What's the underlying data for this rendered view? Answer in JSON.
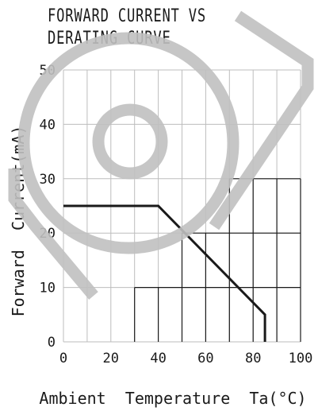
{
  "title_lines": [
    "FORWARD CURRENT VS",
    "DERATING CURVE"
  ],
  "chart_data": {
    "type": "line",
    "title": "FORWARD CURRENT VS DERATING CURVE",
    "xlabel": "Ambient  Temperature  Ta(°C)",
    "ylabel": "Forward  Current(mA)",
    "xlim": [
      0,
      100
    ],
    "ylim": [
      0,
      50
    ],
    "x_ticks": [
      "0",
      "20",
      "40",
      "60",
      "80",
      "100"
    ],
    "y_ticks": [
      "0",
      "10",
      "20",
      "30",
      "40",
      "50"
    ],
    "grid": true,
    "series": [
      {
        "x": [
          0,
          40,
          85,
          85
        ],
        "y": [
          25,
          25,
          5,
          0
        ]
      }
    ]
  },
  "colors": {
    "line": "#1a1a1a",
    "grid": "#bdbdbd",
    "grid_dark": "#1a1a1a",
    "watermark": "#c0c0c0"
  },
  "watermark": "logo-watermark"
}
